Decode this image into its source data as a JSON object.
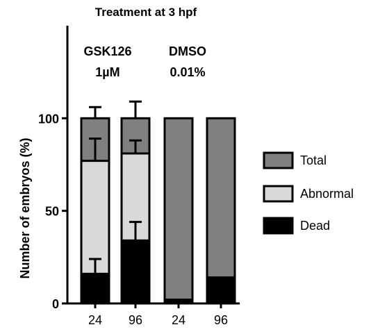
{
  "chart_data": {
    "type": "bar",
    "stacked": true,
    "title": "Treatment at 3 hpf",
    "xlabel": "",
    "ylabel": "Number of embryos (%)",
    "ylim": [
      0,
      150
    ],
    "yticks": [
      0,
      50,
      100
    ],
    "categories": [
      "24",
      "96",
      "24",
      "96"
    ],
    "group_labels": [
      {
        "line1": "GSK126",
        "line2": "1µM"
      },
      {
        "line1": "DMSO",
        "line2": "0.01%"
      }
    ],
    "series": [
      {
        "name": "Dead",
        "color": "#000000",
        "values": [
          16,
          34,
          2,
          14
        ],
        "error": [
          8,
          10,
          0,
          0
        ]
      },
      {
        "name": "Abnormal",
        "color": "#d9d9d9",
        "values": [
          77,
          81,
          2,
          14
        ],
        "error": [
          12,
          7,
          0,
          0
        ]
      },
      {
        "name": "Total",
        "color": "#808080",
        "values": [
          100,
          100,
          100,
          100
        ],
        "error": [
          6,
          9,
          0,
          0
        ]
      }
    ],
    "legend": {
      "position": "right",
      "order": [
        "Total",
        "Abnormal",
        "Dead"
      ]
    },
    "grid": false
  }
}
